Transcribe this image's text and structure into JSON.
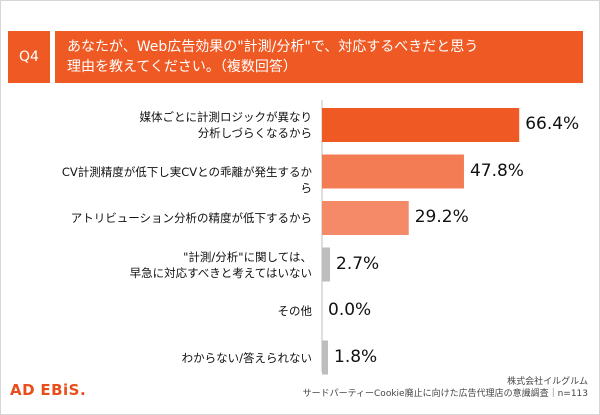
{
  "question": {
    "badge": "Q4",
    "line1": "あなたが、Web広告効果の\"計測/分析\"で、対応するべきだと思う",
    "line2": "理由を教えてください。（複数回答）"
  },
  "chart_data": {
    "type": "bar",
    "orientation": "horizontal",
    "categories": [
      "媒体ごとに計測ロジックが異なり\n分析しづらくなるから",
      "CV計測精度が低下し実CVとの乖離が発生するから",
      "アトリビューション分析の精度が低下するから",
      "\"計測/分析\"に関しては、\n早急に対応すべきと考えてはいない",
      "その他",
      "わからない/答えられない"
    ],
    "values": [
      66.4,
      47.8,
      29.2,
      2.7,
      0.0,
      1.8
    ],
    "value_labels": [
      "66.4%",
      "47.8%",
      "29.2%",
      "2.7%",
      "0.0%",
      "1.8%"
    ],
    "bar_colors": [
      "#ef5a24",
      "#f47c55",
      "#f48a67",
      "#bdbdbd",
      "#bdbdbd",
      "#bdbdbd"
    ],
    "xlim": [
      0,
      100
    ],
    "grid": false,
    "legend": "none"
  },
  "footer": {
    "logo_ad": "AD",
    "logo_ebis": "EBiS.",
    "credit_line1": "株式会社イルグルム",
    "credit_line2": "サードパーティーCookie廃止に向けた広告代理店の意識調査｜n=113"
  }
}
